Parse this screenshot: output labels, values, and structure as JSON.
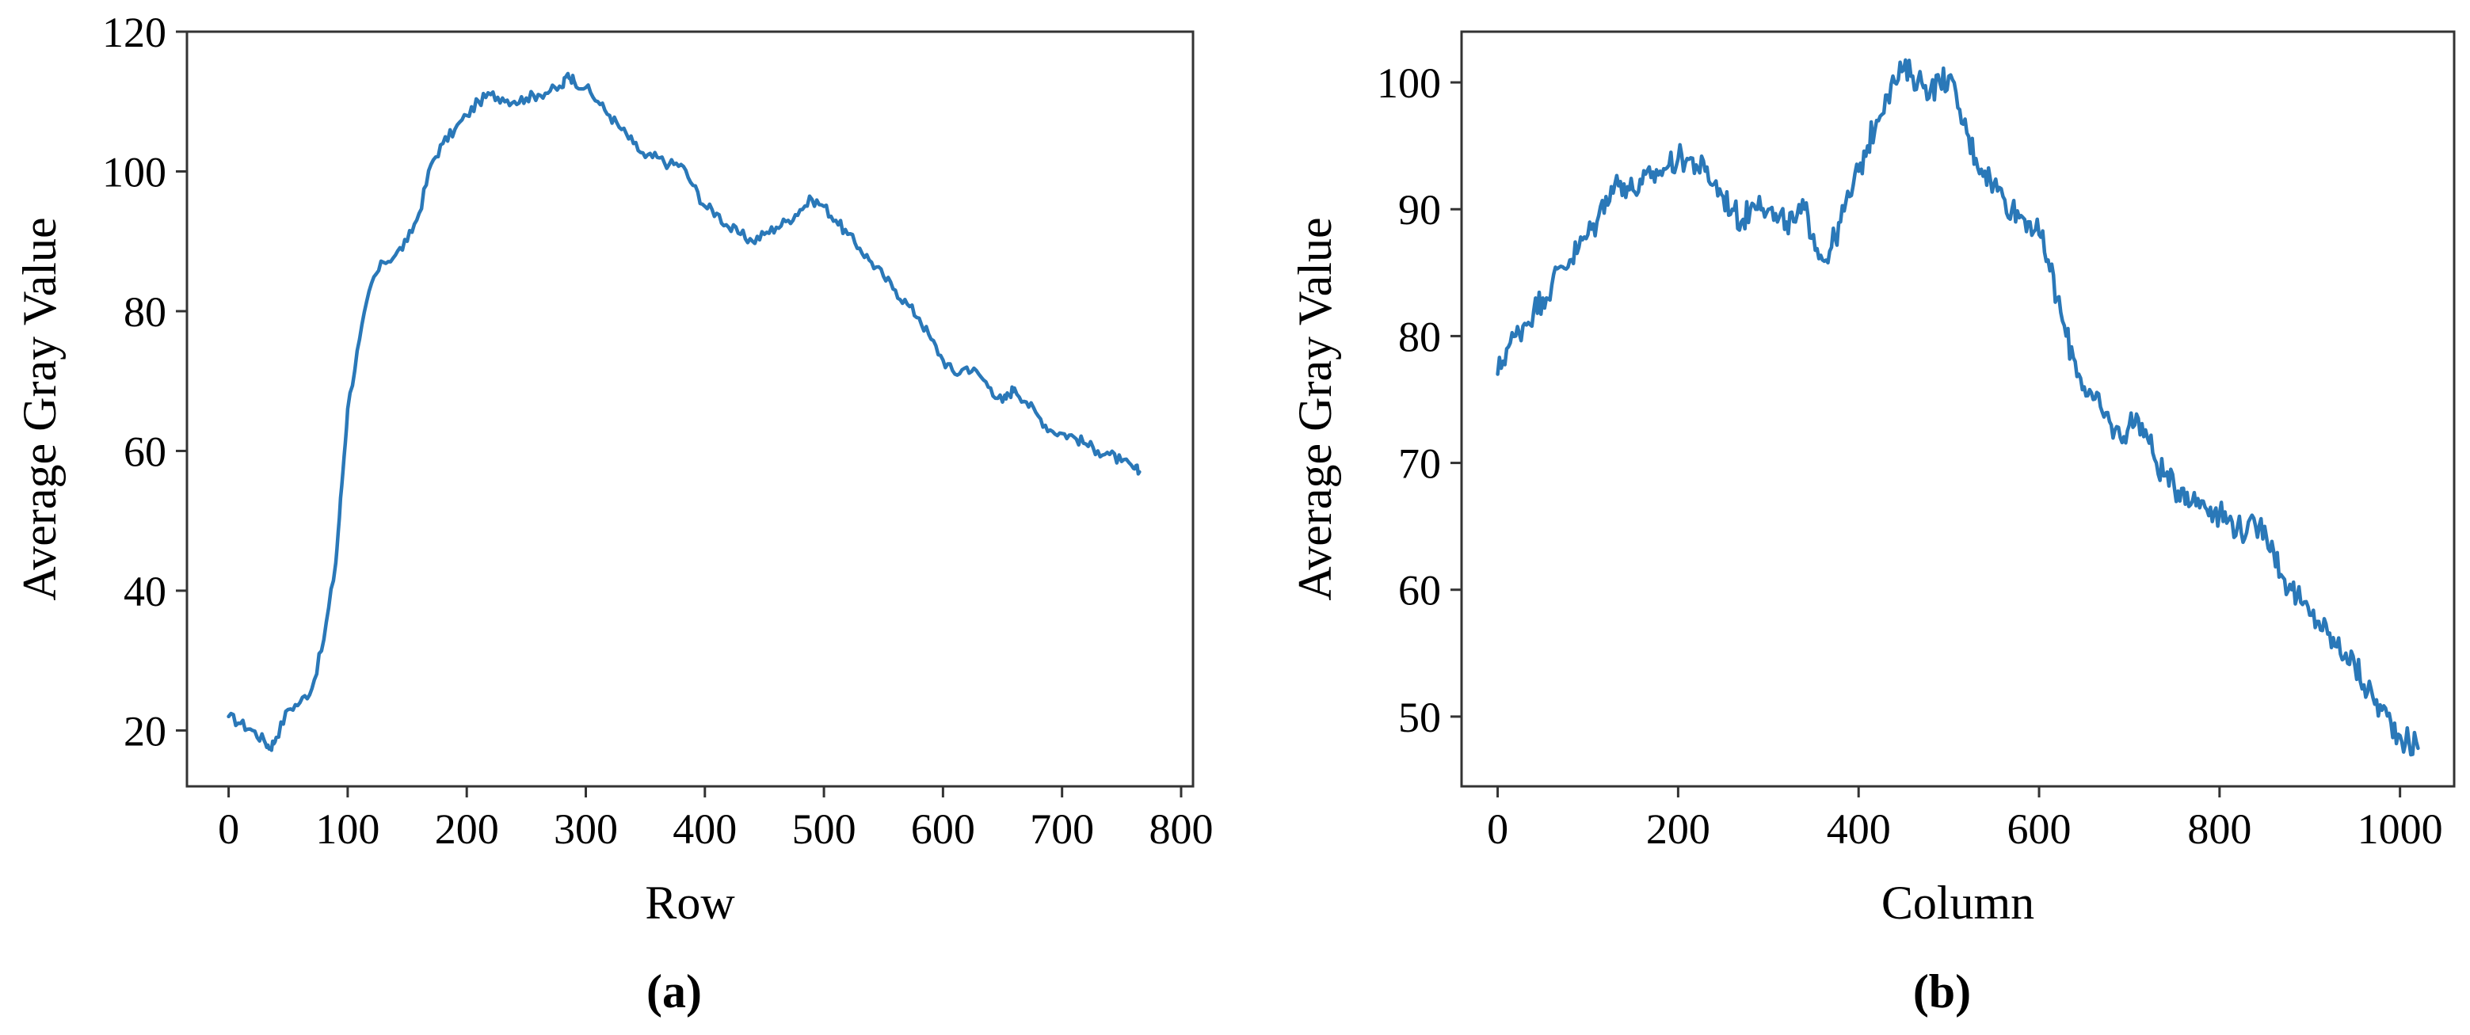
{
  "colors": {
    "series": "#2a78b8",
    "frame": "#333333",
    "text": "#000000"
  },
  "chart_data": [
    {
      "type": "line",
      "panel_label": "(a)",
      "xlabel": "Row",
      "ylabel": "Average Gray Value",
      "xlim": [
        -35,
        810
      ],
      "ylim": [
        12,
        120
      ],
      "xticks": [
        0,
        100,
        200,
        300,
        400,
        500,
        600,
        700,
        800
      ],
      "yticks": [
        20,
        40,
        60,
        80,
        100,
        120
      ],
      "grid": false,
      "legend": "none",
      "series": [
        {
          "x": [
            0,
            10,
            20,
            30,
            35,
            40,
            50,
            60,
            70,
            80,
            90,
            95,
            100,
            110,
            120,
            130,
            140,
            150,
            160,
            170,
            180,
            190,
            200,
            210,
            220,
            230,
            240,
            250,
            260,
            270,
            280,
            285,
            290,
            300,
            310,
            320,
            330,
            340,
            350,
            360,
            370,
            380,
            390,
            400,
            410,
            420,
            430,
            440,
            450,
            460,
            470,
            480,
            490,
            500,
            510,
            520,
            530,
            540,
            550,
            560,
            570,
            580,
            590,
            600,
            610,
            620,
            630,
            640,
            650,
            655,
            660,
            670,
            680,
            690,
            700,
            710,
            720,
            730,
            740,
            750,
            760,
            765
          ],
          "values": [
            22,
            21,
            20,
            18.5,
            17.5,
            19,
            23,
            24,
            26,
            33,
            44,
            55,
            66,
            76,
            84,
            87,
            88,
            90,
            94,
            101,
            104,
            106,
            108,
            110,
            111,
            110.5,
            110,
            110.5,
            111,
            111.5,
            112,
            114,
            113,
            112,
            110,
            108,
            106,
            104,
            102,
            102,
            101,
            101,
            98,
            95,
            94,
            92,
            91,
            90,
            91,
            92,
            93,
            94.5,
            96,
            95,
            93,
            91,
            89,
            87,
            85,
            83,
            81,
            79,
            76,
            73,
            71,
            72,
            71,
            69,
            67,
            68,
            69,
            67,
            65,
            63,
            62.5,
            62,
            61,
            60,
            59.5,
            58.5,
            57.5,
            57
          ]
        }
      ]
    },
    {
      "type": "line",
      "panel_label": "(b)",
      "xlabel": "Column",
      "ylabel": "Average Gray Value",
      "xlim": [
        -40,
        1060
      ],
      "ylim": [
        44.5,
        104
      ],
      "xticks": [
        0,
        200,
        400,
        600,
        800,
        1000
      ],
      "yticks": [
        50,
        60,
        70,
        80,
        90,
        100
      ],
      "grid": false,
      "legend": "none",
      "series": [
        {
          "x": [
            0,
            10,
            20,
            30,
            40,
            50,
            60,
            70,
            80,
            90,
            100,
            110,
            120,
            130,
            140,
            150,
            160,
            170,
            180,
            190,
            200,
            210,
            220,
            230,
            240,
            250,
            260,
            270,
            280,
            290,
            300,
            310,
            320,
            330,
            340,
            350,
            360,
            370,
            380,
            390,
            400,
            410,
            420,
            430,
            440,
            450,
            460,
            470,
            480,
            490,
            500,
            510,
            520,
            530,
            540,
            550,
            560,
            570,
            580,
            590,
            600,
            610,
            620,
            630,
            640,
            650,
            660,
            670,
            680,
            690,
            700,
            710,
            720,
            730,
            740,
            750,
            760,
            770,
            780,
            790,
            800,
            810,
            820,
            830,
            840,
            850,
            860,
            870,
            880,
            890,
            900,
            910,
            920,
            930,
            940,
            950,
            960,
            970,
            980,
            990,
            1000,
            1010,
            1020
          ],
          "values": [
            77,
            79,
            80,
            81,
            82,
            83,
            84,
            85.5,
            86,
            87,
            88,
            89,
            91,
            92,
            92,
            91.5,
            92,
            92.5,
            93,
            93.5,
            94,
            94,
            93.5,
            93,
            92,
            91,
            90,
            89,
            90,
            91,
            90,
            89,
            89,
            89,
            90,
            88,
            86,
            87,
            89,
            91,
            93,
            95,
            97,
            99,
            100,
            101,
            100.5,
            100,
            99.5,
            100,
            100.5,
            98,
            96,
            94,
            93,
            92,
            91,
            90,
            89.5,
            89,
            88,
            86,
            83,
            80,
            78,
            76,
            75,
            74,
            73,
            72,
            73,
            73.5,
            72,
            70,
            69,
            68,
            68,
            67,
            67,
            66.5,
            66,
            65.5,
            65,
            64.5,
            65,
            65,
            63,
            61,
            60,
            59,
            58,
            57.5,
            56.5,
            55.5,
            55,
            54,
            52.5,
            51.5,
            50.5,
            49.5,
            48.5,
            48,
            47.5
          ]
        }
      ]
    }
  ]
}
